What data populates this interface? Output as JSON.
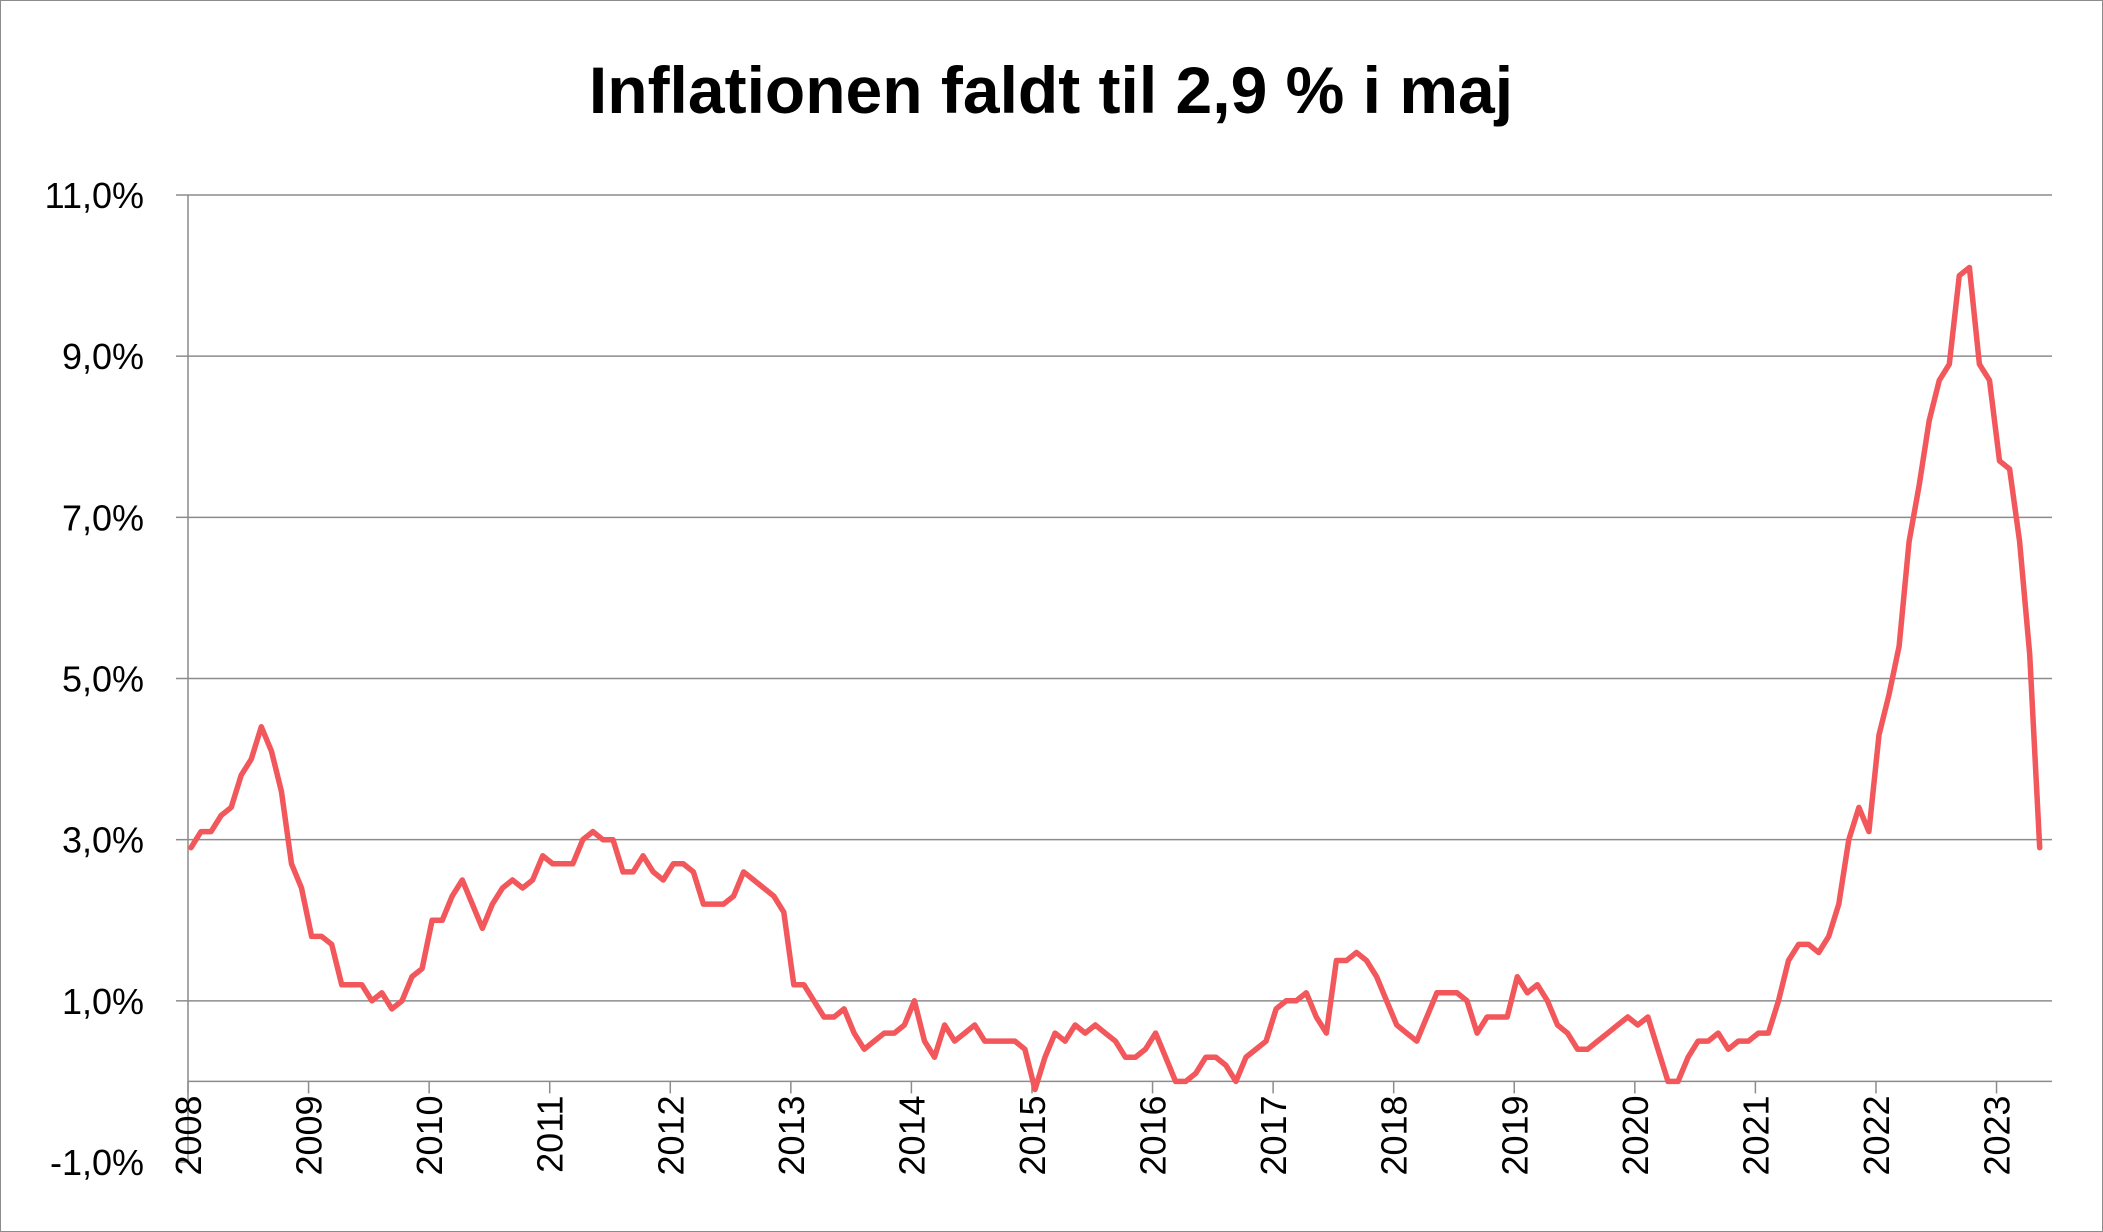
{
  "chart_data": {
    "type": "line",
    "title": "Inflationen faldt til 2,9 % i maj",
    "xlabel": "",
    "ylabel": "",
    "ylim": [
      -1.0,
      11.0
    ],
    "y_ticks": [
      "11,0%",
      "9,0%",
      "7,0%",
      "5,0%",
      "3,0%",
      "1,0%",
      "-1,0%"
    ],
    "y_tick_values": [
      11,
      9,
      7,
      5,
      3,
      1,
      -1
    ],
    "x_ticks": [
      "2008",
      "2009",
      "2010",
      "2011",
      "2012",
      "2013",
      "2014",
      "2015",
      "2016",
      "2017",
      "2018",
      "2019",
      "2020",
      "2021",
      "2022",
      "2023"
    ],
    "x_axis_at": 0,
    "grid": true,
    "series_color": "#f2575b",
    "series": [
      {
        "name": "",
        "start": "2008-01",
        "frequency": "monthly",
        "values": [
          2.9,
          3.1,
          3.1,
          3.3,
          3.4,
          3.8,
          4.0,
          4.4,
          4.1,
          3.6,
          2.7,
          2.4,
          1.8,
          1.8,
          1.7,
          1.2,
          1.2,
          1.2,
          1.0,
          1.1,
          0.9,
          1.0,
          1.3,
          1.4,
          2.0,
          2.0,
          2.3,
          2.5,
          2.2,
          1.9,
          2.2,
          2.4,
          2.5,
          2.4,
          2.5,
          2.8,
          2.7,
          2.7,
          2.7,
          3.0,
          3.1,
          3.0,
          3.0,
          2.6,
          2.6,
          2.8,
          2.6,
          2.5,
          2.7,
          2.7,
          2.6,
          2.2,
          2.2,
          2.2,
          2.3,
          2.6,
          2.5,
          2.4,
          2.3,
          2.1,
          1.2,
          1.2,
          1.0,
          0.8,
          0.8,
          0.9,
          0.6,
          0.4,
          0.5,
          0.6,
          0.6,
          0.7,
          1.0,
          0.5,
          0.3,
          0.7,
          0.5,
          0.6,
          0.7,
          0.5,
          0.5,
          0.5,
          0.5,
          0.4,
          -0.1,
          0.3,
          0.6,
          0.5,
          0.7,
          0.6,
          0.7,
          0.6,
          0.5,
          0.3,
          0.3,
          0.4,
          0.6,
          0.3,
          0.0,
          0.0,
          0.1,
          0.3,
          0.3,
          0.2,
          0.0,
          0.3,
          0.4,
          0.5,
          0.9,
          1.0,
          1.0,
          1.1,
          0.8,
          0.6,
          1.5,
          1.5,
          1.6,
          1.5,
          1.3,
          1.0,
          0.7,
          0.6,
          0.5,
          0.8,
          1.1,
          1.1,
          1.1,
          1.0,
          0.6,
          0.8,
          0.8,
          0.8,
          1.3,
          1.1,
          1.2,
          1.0,
          0.7,
          0.6,
          0.4,
          0.4,
          0.5,
          0.6,
          0.7,
          0.8,
          0.7,
          0.8,
          0.4,
          0.0,
          0.0,
          0.3,
          0.5,
          0.5,
          0.6,
          0.4,
          0.5,
          0.5,
          0.6,
          0.6,
          1.0,
          1.5,
          1.7,
          1.7,
          1.6,
          1.8,
          2.2,
          3.0,
          3.4,
          3.1,
          4.3,
          4.8,
          5.4,
          6.7,
          7.4,
          8.2,
          8.7,
          8.9,
          10.0,
          10.1,
          8.9,
          8.7,
          7.7,
          7.6,
          6.7,
          5.3,
          2.9
        ]
      }
    ]
  }
}
